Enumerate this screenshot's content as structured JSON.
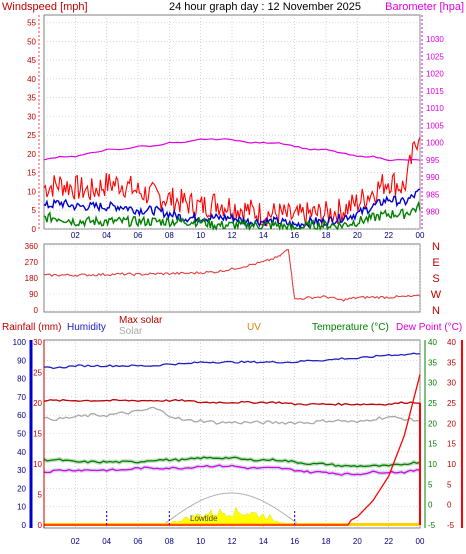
{
  "header": {
    "left_title": "Windspeed [mph]",
    "center_title": "24 hour graph day : 12 November 2025",
    "right_title": "Barometer [hpa]"
  },
  "colors": {
    "red": "#ff0000",
    "dark_red": "#c00000",
    "blue": "#0000cc",
    "dark_blue": "#2020c0",
    "green": "#008000",
    "magenta": "#e000e0",
    "gray": "#a8a8a8",
    "orange": "#e08000",
    "yellow": "#ffff00",
    "teal": "#008080"
  },
  "time_ticks": [
    "02",
    "04",
    "06",
    "08",
    "10",
    "12",
    "14",
    "16",
    "18",
    "20",
    "22",
    "00"
  ],
  "chart_data": [
    {
      "type": "line",
      "name": "wind-barometer",
      "ylim_left": [
        0,
        57
      ],
      "left_ticks": [
        0,
        5,
        10,
        15,
        20,
        25,
        30,
        35,
        40,
        45,
        50,
        55
      ],
      "ylim_right": [
        975,
        1037
      ],
      "right_ticks": [
        980,
        985,
        990,
        995,
        1000,
        1005,
        1010,
        1015,
        1020,
        1025,
        1030
      ],
      "x": [
        0,
        1,
        2,
        3,
        4,
        5,
        6,
        7,
        8,
        9,
        10,
        11,
        12,
        13,
        14,
        15,
        16,
        17,
        18,
        19,
        20,
        21,
        22,
        23,
        24
      ],
      "series": [
        {
          "name": "Windspeed [mph]",
          "color": "#ff0000",
          "values": [
            11,
            12,
            11,
            10,
            12,
            12,
            10,
            9,
            8,
            7,
            6,
            7,
            6,
            5,
            4,
            4,
            3,
            4,
            4,
            5,
            7,
            10,
            13,
            11,
            27
          ]
        },
        {
          "name": "wind-avg",
          "color": "#0000cc",
          "values": [
            6,
            7,
            6,
            6,
            6,
            6,
            5,
            5,
            4,
            3,
            3,
            3,
            3,
            2,
            2,
            2,
            1,
            2,
            2,
            3,
            4,
            6,
            8,
            7,
            10
          ]
        },
        {
          "name": "wind-low",
          "color": "#008000",
          "values": [
            3,
            3,
            2,
            2,
            2,
            2,
            2,
            2,
            2,
            2,
            2,
            1,
            1,
            1,
            1,
            1,
            0,
            1,
            1,
            1,
            2,
            3,
            4,
            4,
            6
          ]
        },
        {
          "name": "Barometer [hpa]",
          "color": "#e000e0",
          "values": [
            995,
            996,
            996,
            997,
            998,
            998,
            999,
            999,
            1000,
            1000,
            1001,
            1001,
            1001,
            1000,
            1000,
            1000,
            999,
            998,
            998,
            997,
            996,
            996,
            995,
            995,
            995
          ]
        }
      ]
    },
    {
      "type": "line",
      "name": "wind-direction",
      "ylim": [
        0,
        360
      ],
      "ticks": [
        0,
        90,
        180,
        270,
        360
      ],
      "tick_labels": [
        "0",
        "90",
        "180",
        "270",
        "360"
      ],
      "compass": [
        "N",
        "W",
        "S",
        "E",
        "N"
      ],
      "x": [
        0,
        1,
        2,
        3,
        4,
        5,
        6,
        7,
        8,
        9,
        10,
        11,
        12,
        13,
        14,
        15,
        15.6,
        16,
        17,
        18,
        19,
        20,
        21,
        22,
        23,
        24
      ],
      "series": [
        {
          "name": "direction",
          "color": "#e04040",
          "values": [
            195,
            197,
            196,
            198,
            200,
            202,
            200,
            203,
            205,
            206,
            210,
            215,
            230,
            250,
            270,
            300,
            345,
            60,
            70,
            75,
            55,
            70,
            72,
            72,
            75,
            78
          ]
        }
      ]
    },
    {
      "type": "line",
      "name": "multi-sensor",
      "legend": [
        "Rainfall (mm)",
        "Humidity",
        "Max solar",
        "Solar",
        "UV",
        "Temperature (°C)",
        "Dew Point (°C)"
      ],
      "left_ticks_rain": [
        0,
        5,
        10,
        15,
        20,
        25,
        30,
        35,
        40,
        45,
        50,
        55,
        60,
        65,
        70,
        75,
        80,
        85,
        90,
        95,
        100
      ],
      "left_ticks_hum": [
        0,
        5,
        10,
        15,
        20,
        25,
        30
      ],
      "right_ticks_temp": [
        -5,
        0,
        5,
        10,
        15,
        20,
        25,
        30,
        35,
        40
      ],
      "right_ticks_dew": [
        -5,
        0,
        5,
        10,
        15,
        20,
        25,
        30,
        35,
        40
      ],
      "temp_ylim": [
        -5,
        40
      ],
      "x": [
        0,
        1,
        2,
        3,
        4,
        5,
        6,
        7,
        8,
        9,
        10,
        11,
        12,
        13,
        14,
        15,
        16,
        17,
        18,
        19,
        20,
        21,
        22,
        23,
        24
      ],
      "series": [
        {
          "name": "Humidity",
          "color": "#2020c0",
          "values": [
            86,
            86,
            87,
            87,
            87,
            87,
            87,
            87,
            88,
            88,
            89,
            89,
            89,
            89,
            89,
            89,
            89,
            90,
            90,
            91,
            91,
            92,
            93,
            93,
            94
          ]
        },
        {
          "name": "Max solar",
          "color": "#c00000",
          "values": [
            68,
            68,
            68,
            68,
            68,
            68,
            68,
            68,
            68,
            68,
            67,
            67,
            67,
            67,
            67,
            67,
            66,
            66,
            66,
            66,
            66,
            66,
            66,
            67,
            67
          ]
        },
        {
          "name": "Solar",
          "color": "#a8a8a8",
          "values": [
            58,
            58,
            59,
            60,
            60,
            61,
            62,
            64,
            60,
            57,
            57,
            56,
            56,
            56,
            56,
            56,
            56,
            56,
            57,
            57,
            56,
            58,
            59,
            58,
            57
          ]
        },
        {
          "name": "Temperature (°C)",
          "color": "#008000",
          "values": [
            11,
            11,
            10.5,
            10.5,
            10.5,
            10.5,
            10.5,
            11,
            11,
            11,
            11.5,
            11.5,
            11.5,
            11,
            11,
            11,
            10.5,
            10,
            10,
            9.5,
            9.5,
            9.5,
            9.5,
            10,
            10.5
          ]
        },
        {
          "name": "Dew Point (°C)",
          "color": "#e000e0",
          "values": [
            8,
            8.5,
            8.5,
            8.5,
            8.5,
            8.5,
            9,
            9,
            9,
            9,
            9.5,
            9.5,
            9.5,
            9,
            9,
            9,
            8.5,
            8,
            8,
            7.5,
            7.5,
            8,
            8,
            8,
            8.5
          ]
        },
        {
          "name": "Rainfall (mm)",
          "color": "#ff0000",
          "values": [
            0,
            0,
            0,
            0,
            0,
            0,
            0,
            0,
            0,
            0,
            0,
            0,
            0,
            0,
            0,
            0,
            0,
            0,
            0,
            0,
            2,
            6,
            12,
            22,
            37
          ]
        },
        {
          "name": "UV",
          "color": "#e08000",
          "values": [
            0,
            0,
            0,
            0,
            0,
            0,
            0,
            0,
            0,
            0,
            0,
            0,
            0,
            0,
            0,
            0,
            0,
            0,
            0,
            0,
            0,
            0,
            0,
            0,
            0
          ]
        }
      ],
      "annotation": "Lowtide"
    }
  ]
}
